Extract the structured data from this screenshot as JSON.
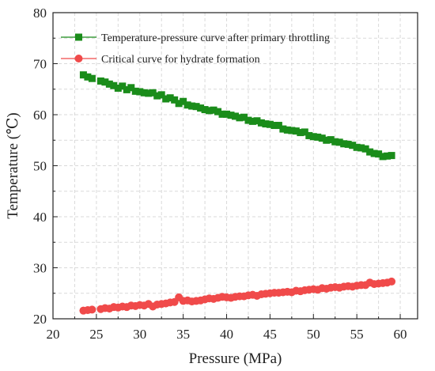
{
  "chart_data": {
    "type": "scatter",
    "title": "",
    "xlabel": "Pressure (MPa)",
    "ylabel": "Temperature (℃)",
    "xlim": [
      20,
      62
    ],
    "ylim": [
      20,
      80
    ],
    "x_ticks": [
      20,
      25,
      30,
      35,
      40,
      45,
      50,
      55,
      60
    ],
    "y_ticks": [
      20,
      30,
      40,
      50,
      60,
      70,
      80
    ],
    "grid": true,
    "legend": {
      "placement": "top-left"
    },
    "series": [
      {
        "name": "Temperature-pressure curve after primary throttling",
        "color": "#1a8c1a",
        "marker": "square",
        "x": [
          23.5,
          24.0,
          24.5,
          25.5,
          26.0,
          26.5,
          27.0,
          27.5,
          28.0,
          28.5,
          29.0,
          29.5,
          30.0,
          30.5,
          31.0,
          31.5,
          32.0,
          32.5,
          33.0,
          33.5,
          34.0,
          34.5,
          35.0,
          35.5,
          36.0,
          36.5,
          37.0,
          37.5,
          38.0,
          38.5,
          39.0,
          39.5,
          40.0,
          40.5,
          41.0,
          41.5,
          42.0,
          42.5,
          43.0,
          43.5,
          44.0,
          44.5,
          45.0,
          45.5,
          46.0,
          46.5,
          47.0,
          47.5,
          48.0,
          48.5,
          49.0,
          49.5,
          50.0,
          50.5,
          51.0,
          51.5,
          52.0,
          52.5,
          53.0,
          53.5,
          54.0,
          54.5,
          55.0,
          55.5,
          56.0,
          56.5,
          57.0,
          57.5,
          58.0,
          58.5,
          59.0
        ],
        "y": [
          67.8,
          67.4,
          67.1,
          66.6,
          66.4,
          66.0,
          65.7,
          65.2,
          65.6,
          64.9,
          65.3,
          64.6,
          64.5,
          64.3,
          64.2,
          64.3,
          63.7,
          63.9,
          63.1,
          63.3,
          62.9,
          62.2,
          62.6,
          61.9,
          61.7,
          61.6,
          61.3,
          61.0,
          60.8,
          60.9,
          60.6,
          60.1,
          60.1,
          59.9,
          59.7,
          59.4,
          59.5,
          58.9,
          58.7,
          58.8,
          58.4,
          58.2,
          58.1,
          57.9,
          57.9,
          57.2,
          57.0,
          56.9,
          56.8,
          56.5,
          56.6,
          55.9,
          55.7,
          55.6,
          55.4,
          55.0,
          55.1,
          54.7,
          54.6,
          54.3,
          54.2,
          54.0,
          53.6,
          53.5,
          53.3,
          52.7,
          52.4,
          52.3,
          51.8,
          51.9,
          52.0
        ]
      },
      {
        "name": "Critical curve for hydrate formation",
        "color": "#f04a4a",
        "marker": "circle",
        "x": [
          23.5,
          24.0,
          24.5,
          25.5,
          26.0,
          26.5,
          27.0,
          27.5,
          28.0,
          28.5,
          29.0,
          29.5,
          30.0,
          30.5,
          31.0,
          31.5,
          32.0,
          32.5,
          33.0,
          33.5,
          34.0,
          34.5,
          35.0,
          35.5,
          36.0,
          36.5,
          37.0,
          37.5,
          38.0,
          38.5,
          39.0,
          39.5,
          40.0,
          40.5,
          41.0,
          41.5,
          42.0,
          42.5,
          43.0,
          43.5,
          44.0,
          44.5,
          45.0,
          45.5,
          46.0,
          46.5,
          47.0,
          47.5,
          48.0,
          48.5,
          49.0,
          49.5,
          50.0,
          50.5,
          51.0,
          51.5,
          52.0,
          52.5,
          53.0,
          53.5,
          54.0,
          54.5,
          55.0,
          55.5,
          56.0,
          56.5,
          57.0,
          57.5,
          58.0,
          58.5,
          59.0
        ],
        "y": [
          21.6,
          21.7,
          21.8,
          21.9,
          22.1,
          22.0,
          22.3,
          22.2,
          22.4,
          22.3,
          22.6,
          22.5,
          22.7,
          22.6,
          22.9,
          22.4,
          22.8,
          22.9,
          23.0,
          23.2,
          23.3,
          24.2,
          23.5,
          23.6,
          23.4,
          23.5,
          23.6,
          23.8,
          24.0,
          23.9,
          24.1,
          24.3,
          24.2,
          24.1,
          24.3,
          24.4,
          24.4,
          24.6,
          24.7,
          24.5,
          24.8,
          24.9,
          25.0,
          25.1,
          25.1,
          25.2,
          25.3,
          25.2,
          25.5,
          25.4,
          25.6,
          25.7,
          25.8,
          25.7,
          26.0,
          25.9,
          26.1,
          26.2,
          26.1,
          26.3,
          26.4,
          26.3,
          26.5,
          26.6,
          26.6,
          27.1,
          26.8,
          26.9,
          27.0,
          27.1,
          27.3
        ]
      }
    ]
  }
}
